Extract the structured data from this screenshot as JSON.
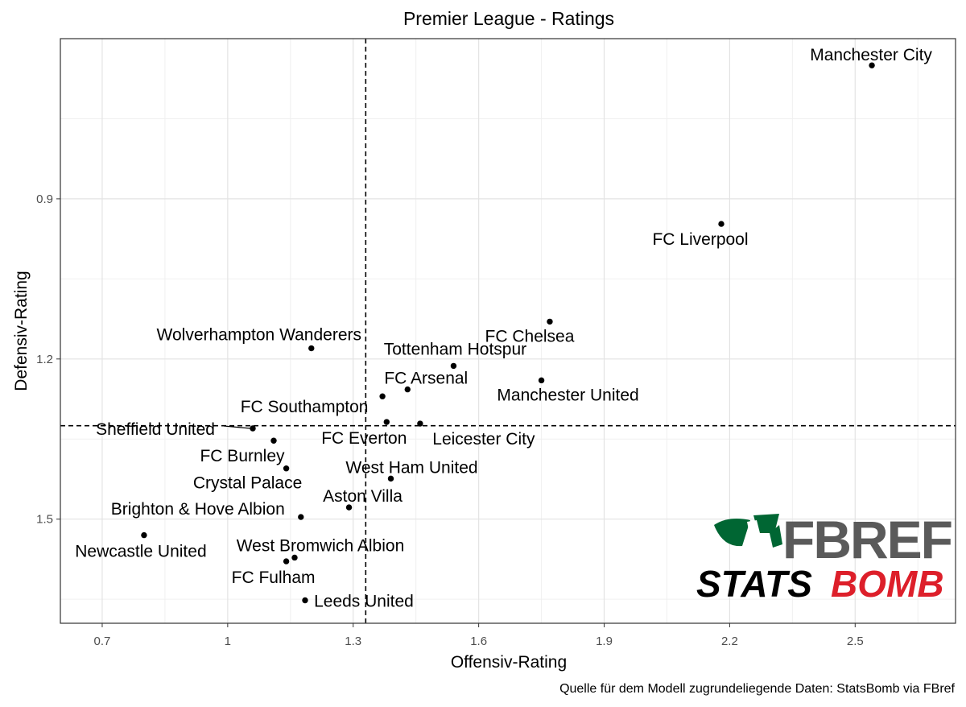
{
  "chart_data": {
    "type": "scatter",
    "title": "Premier League - Ratings",
    "xlabel": "Offensiv-Rating",
    "ylabel": "Defensiv-Rating",
    "caption": "Quelle für dem Modell zugrundeliegende Daten: StatsBomb via FBref",
    "xlim": [
      0.6,
      2.74
    ],
    "ylim_reversed": [
      0.6,
      1.695
    ],
    "y_axis_reversed": true,
    "x_ticks": [
      "0.7",
      "1",
      "1.3",
      "1.6",
      "1.9",
      "2.2",
      "2.5"
    ],
    "y_ticks": [
      "0.9",
      "1.2",
      "1.5"
    ],
    "grid": true,
    "reference_lines": {
      "x": 1.33,
      "y": 1.325
    },
    "points": [
      {
        "team": "Manchester City",
        "x": 2.54,
        "y": 0.65
      },
      {
        "team": "FC Liverpool",
        "x": 2.18,
        "y": 0.947
      },
      {
        "team": "FC Chelsea",
        "x": 1.77,
        "y": 1.13
      },
      {
        "team": "Wolverhampton Wanderers",
        "x": 1.2,
        "y": 1.18
      },
      {
        "team": "Tottenham Hotspur",
        "x": 1.54,
        "y": 1.213
      },
      {
        "team": "Manchester United",
        "x": 1.75,
        "y": 1.24
      },
      {
        "team": "FC Arsenal",
        "x": 1.43,
        "y": 1.257
      },
      {
        "team": "FC Southampton",
        "x": 1.37,
        "y": 1.27
      },
      {
        "team": "FC Everton",
        "x": 1.38,
        "y": 1.318
      },
      {
        "team": "Leicester City",
        "x": 1.46,
        "y": 1.321
      },
      {
        "team": "Sheffield United",
        "x": 1.06,
        "y": 1.33
      },
      {
        "team": "FC Burnley",
        "x": 1.11,
        "y": 1.353
      },
      {
        "team": "Crystal Palace",
        "x": 1.14,
        "y": 1.405
      },
      {
        "team": "West Ham United",
        "x": 1.39,
        "y": 1.424
      },
      {
        "team": "Aston Villa",
        "x": 1.29,
        "y": 1.478
      },
      {
        "team": "Brighton & Hove Albion",
        "x": 1.175,
        "y": 1.496
      },
      {
        "team": "Newcastle United",
        "x": 0.8,
        "y": 1.53
      },
      {
        "team": "West Bromwich Albion",
        "x": 1.16,
        "y": 1.572
      },
      {
        "team": "FC Fulham",
        "x": 1.14,
        "y": 1.579
      },
      {
        "team": "Leeds United",
        "x": 1.185,
        "y": 1.652
      }
    ]
  },
  "logos": {
    "fbref_text": "FBREF",
    "statsbomb_text_black": "STATS",
    "statsbomb_text_red": "BOMB",
    "fbref_color": "#5a5a5a",
    "fbref_green": "#006633",
    "statsbomb_red": "#dd1f2a"
  }
}
